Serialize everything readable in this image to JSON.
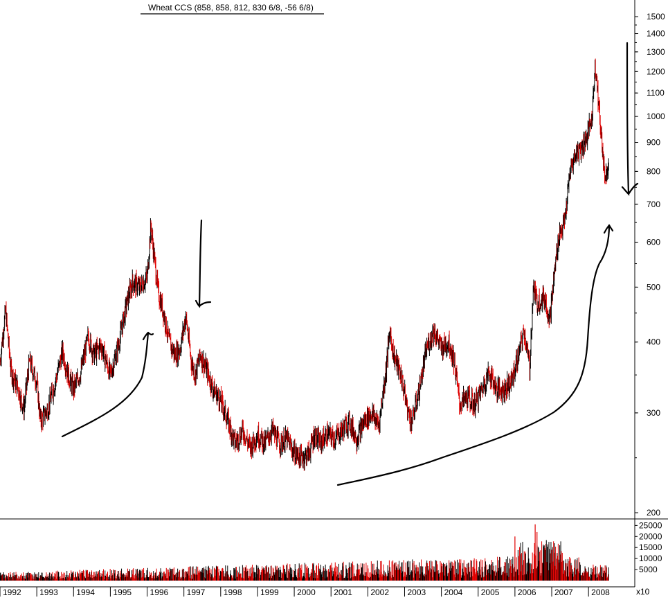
{
  "chart_data": {
    "type": "candlestick",
    "title": "Wheat CCS (858, 858, 812, 830 6/8, -56 6/8)",
    "price_axis": {
      "scale": "log",
      "ylim": [
        240,
        1550
      ],
      "ticks": [
        "1500",
        "1400",
        "1300",
        "1200",
        "1100",
        "1000",
        "900",
        "800",
        "700",
        "600",
        "500",
        "400",
        "300",
        "200"
      ]
    },
    "volume_axis": {
      "multiplier_label": "x10",
      "ticks": [
        "25000",
        "20000",
        "15000",
        "10000",
        "5000"
      ],
      "ylim": [
        0,
        27000
      ]
    },
    "x_axis": {
      "range": [
        1992.0,
        2008.75
      ],
      "tick_labels": [
        "1992",
        "1993",
        "1994",
        "1995",
        "1996",
        "1997",
        "1998",
        "1999",
        "2000",
        "2001",
        "2002",
        "2003",
        "2004",
        "2005",
        "2006",
        "2007",
        "2008"
      ]
    },
    "price_series": {
      "x": [
        1992.0,
        1992.15,
        1992.3,
        1992.5,
        1992.65,
        1992.8,
        1993.0,
        1993.1,
        1993.3,
        1993.5,
        1993.7,
        1993.85,
        1994.0,
        1994.2,
        1994.4,
        1994.55,
        1994.75,
        1995.0,
        1995.2,
        1995.45,
        1995.6,
        1995.8,
        1996.0,
        1996.1,
        1996.2,
        1996.3,
        1996.45,
        1996.6,
        1996.75,
        1996.9,
        1997.05,
        1997.2,
        1997.3,
        1997.45,
        1997.6,
        1997.8,
        1998.0,
        1998.2,
        1998.4,
        1998.6,
        1998.8,
        1999.0,
        1999.2,
        1999.4,
        1999.6,
        1999.8,
        2000.0,
        2000.2,
        2000.4,
        2000.55,
        2000.7,
        2000.9,
        2001.1,
        2001.3,
        2001.5,
        2001.7,
        2001.9,
        2002.1,
        2002.3,
        2002.5,
        2002.6,
        2002.7,
        2002.9,
        2003.1,
        2003.2,
        2003.4,
        2003.6,
        2003.8,
        2004.0,
        2004.2,
        2004.35,
        2004.5,
        2004.7,
        2004.9,
        2005.1,
        2005.3,
        2005.5,
        2005.7,
        2005.9,
        2006.1,
        2006.25,
        2006.4,
        2006.5,
        2006.6,
        2006.8,
        2006.95,
        2007.1,
        2007.2,
        2007.35,
        2007.5,
        2007.65,
        2007.8,
        2007.95,
        2008.1,
        2008.18,
        2008.3,
        2008.45,
        2008.55
      ],
      "close": [
        370,
        455,
        355,
        330,
        305,
        370,
        340,
        290,
        305,
        340,
        385,
        350,
        330,
        355,
        410,
        380,
        395,
        350,
        390,
        470,
        510,
        500,
        520,
        640,
        560,
        490,
        450,
        400,
        380,
        390,
        445,
        370,
        350,
        380,
        360,
        330,
        315,
        290,
        265,
        280,
        260,
        275,
        265,
        280,
        265,
        270,
        255,
        250,
        255,
        275,
        265,
        275,
        270,
        280,
        290,
        270,
        290,
        300,
        285,
        360,
        420,
        380,
        350,
        300,
        290,
        330,
        390,
        420,
        390,
        400,
        370,
        310,
        320,
        310,
        330,
        355,
        330,
        330,
        340,
        380,
        420,
        360,
        500,
        470,
        480,
        440,
        550,
        620,
        650,
        800,
        860,
        880,
        920,
        1000,
        1250,
        1000,
        780,
        830
      ]
    },
    "annotations": [
      {
        "type": "down-arrow",
        "near_date": "early 1997"
      },
      {
        "type": "down-arrow",
        "near_date": "mid 2008"
      },
      {
        "type": "up-curve",
        "span": "1993-1995"
      },
      {
        "type": "up-curve",
        "span": "2000-2008"
      }
    ]
  }
}
